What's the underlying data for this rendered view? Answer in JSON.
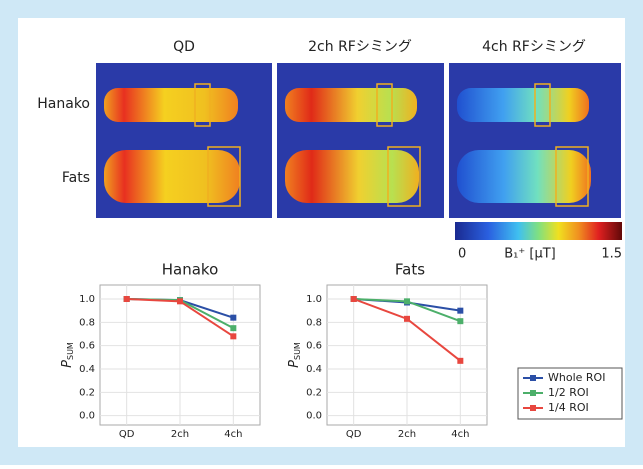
{
  "figure": {
    "columns": [
      "QD",
      "2ch RFシミング",
      "4ch RFシミング"
    ],
    "rows": [
      "Hanako",
      "Fats"
    ],
    "colorbar": {
      "min": 0,
      "max": 1.5,
      "label": "B₁⁺ [μT]"
    }
  },
  "chart_data": [
    {
      "type": "line",
      "title": "Hanako",
      "ylabel": "P",
      "ylabel_sub": "SUM",
      "categories": [
        "QD",
        "2ch",
        "4ch"
      ],
      "ylim": [
        -0.08,
        1.12
      ],
      "yticks": [
        {
          "value": 0,
          "label": "0.0"
        },
        {
          "value": 0.2,
          "label": "0.2"
        },
        {
          "value": 0.4,
          "label": "0.4"
        },
        {
          "value": 0.6,
          "label": "0.6"
        },
        {
          "value": 0.8,
          "label": "0.8"
        },
        {
          "value": 1,
          "label": "1.0"
        }
      ],
      "grid": true,
      "series": [
        {
          "color": "#2b4fa6",
          "values": [
            1.0,
            0.99,
            0.84
          ]
        },
        {
          "color": "#4caf6a",
          "values": [
            1.0,
            0.99,
            0.75
          ]
        },
        {
          "color": "#e8473f",
          "values": [
            1.0,
            0.98,
            0.68
          ]
        }
      ]
    },
    {
      "type": "line",
      "title": "Fats",
      "ylabel": "P",
      "ylabel_sub": "SUM",
      "categories": [
        "QD",
        "2ch",
        "4ch"
      ],
      "ylim": [
        -0.08,
        1.12
      ],
      "yticks": [
        {
          "value": 0,
          "label": "0.0"
        },
        {
          "value": 0.2,
          "label": "0.2"
        },
        {
          "value": 0.4,
          "label": "0.4"
        },
        {
          "value": 0.6,
          "label": "0.6"
        },
        {
          "value": 0.8,
          "label": "0.8"
        },
        {
          "value": 1,
          "label": "1.0"
        }
      ],
      "grid": true,
      "series": [
        {
          "name": "Whole ROI",
          "color": "#2b4fa6",
          "values": [
            1.0,
            0.97,
            0.9
          ]
        },
        {
          "name": "1/2 ROI",
          "color": "#4caf6a",
          "values": [
            1.0,
            0.98,
            0.81
          ]
        },
        {
          "name": "1/4 ROI",
          "color": "#e8473f",
          "values": [
            1.0,
            0.83,
            0.47
          ]
        }
      ]
    }
  ]
}
